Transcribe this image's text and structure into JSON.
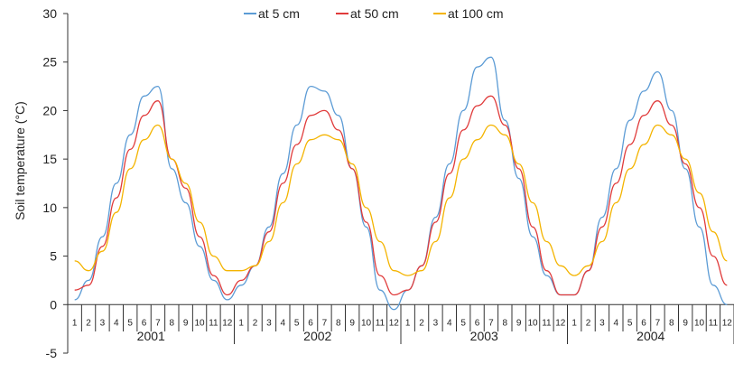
{
  "chart_data": {
    "type": "line",
    "title": "",
    "ylabel": "Soil temperature (°C)",
    "xlabel": "",
    "ylim": [
      -5,
      30
    ],
    "yticks": [
      -5,
      0,
      5,
      10,
      15,
      20,
      25,
      30
    ],
    "years": [
      "2001",
      "2002",
      "2003",
      "2004"
    ],
    "month_labels": [
      "1",
      "2",
      "3",
      "4",
      "5",
      "6",
      "7",
      "8",
      "9",
      "10",
      "11",
      "12"
    ],
    "legend_position": "top",
    "grid": false,
    "series": [
      {
        "name": "at 5 cm",
        "color": "#5b9bd5",
        "values": [
          0.5,
          2.5,
          7.0,
          12.5,
          17.5,
          21.5,
          22.5,
          14.0,
          10.5,
          6.0,
          2.5,
          0.5,
          2.0,
          4.0,
          8.0,
          13.5,
          18.5,
          22.5,
          22.0,
          19.5,
          14.0,
          8.0,
          1.5,
          -0.5,
          1.5,
          4.0,
          9.0,
          14.5,
          20.0,
          24.5,
          25.5,
          19.0,
          13.0,
          7.0,
          3.0,
          1.0,
          1.0,
          3.5,
          9.0,
          14.0,
          19.0,
          22.0,
          24.0,
          20.0,
          14.0,
          8.0,
          2.0,
          0.0
        ]
      },
      {
        "name": "at 50 cm",
        "color": "#e03b3b",
        "values": [
          1.5,
          2.0,
          6.0,
          11.0,
          16.0,
          19.5,
          21.0,
          15.0,
          12.0,
          7.0,
          3.0,
          1.0,
          2.5,
          4.0,
          7.5,
          12.5,
          16.5,
          19.5,
          20.0,
          18.0,
          14.0,
          8.5,
          3.0,
          1.0,
          1.5,
          4.0,
          8.5,
          13.5,
          18.0,
          20.5,
          21.5,
          18.5,
          14.0,
          8.0,
          3.5,
          1.0,
          1.0,
          3.5,
          8.0,
          12.5,
          16.5,
          19.5,
          21.0,
          18.5,
          14.5,
          10.0,
          5.0,
          2.0
        ]
      },
      {
        "name": "at 100 cm",
        "color": "#f4b400",
        "values": [
          4.5,
          3.5,
          5.5,
          9.5,
          14.0,
          17.0,
          18.5,
          15.0,
          12.5,
          8.5,
          5.0,
          3.5,
          3.5,
          4.0,
          6.5,
          10.5,
          14.5,
          17.0,
          17.5,
          17.0,
          14.5,
          10.0,
          6.5,
          3.5,
          3.0,
          3.5,
          6.5,
          11.0,
          15.0,
          17.0,
          18.5,
          17.5,
          14.5,
          10.5,
          6.5,
          4.0,
          3.0,
          4.0,
          6.5,
          10.5,
          14.0,
          16.5,
          18.5,
          17.5,
          15.0,
          11.5,
          7.5,
          4.5
        ]
      }
    ]
  }
}
